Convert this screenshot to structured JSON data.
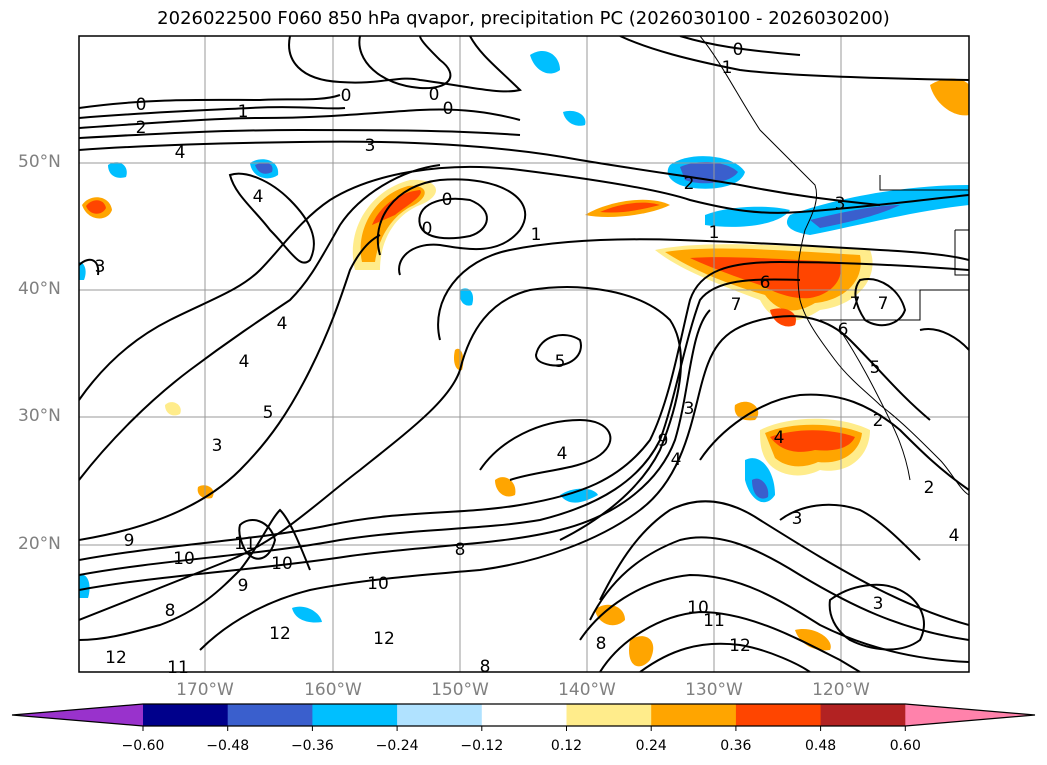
{
  "title": "2026022500 F060 850 hPa qvapor, precipitation PC (2026030100 - 2026030200)",
  "lat_labels": [
    "50°N",
    "40°N",
    "30°N",
    "20°N"
  ],
  "lon_labels": [
    "170°W",
    "160°W",
    "150°W",
    "140°W",
    "130°W",
    "120°W"
  ],
  "colorbar": {
    "colors": [
      "#9932CC",
      "#00008B",
      "#3A5FCD",
      "#00BFFF",
      "#B0E2FF",
      "#FFFFFF",
      "#FFEC8B",
      "#FFA500",
      "#FF4500",
      "#B22222",
      "#FF82AB"
    ],
    "ticks": [
      "−0.60",
      "−0.48",
      "−0.36",
      "−0.24",
      "−0.12",
      "0.12",
      "0.24",
      "0.36",
      "0.48",
      "0.60"
    ]
  },
  "contour_labels": [
    "0",
    "2",
    "1",
    "4",
    "3",
    "0",
    "0",
    "0",
    "0",
    "1",
    "2",
    "1",
    "3",
    "0",
    "0",
    "1",
    "6",
    "7",
    "7",
    "7",
    "6",
    "5",
    "2",
    "5",
    "4",
    "4",
    "3",
    "5",
    "3",
    "9",
    "4",
    "4",
    "4",
    "2",
    "3",
    "3",
    "9",
    "10",
    "11",
    "10",
    "9",
    "8",
    "10",
    "8",
    "12",
    "12",
    "12",
    "11",
    "8",
    "8",
    "10",
    "11",
    "12",
    "3",
    "4",
    "4"
  ]
}
